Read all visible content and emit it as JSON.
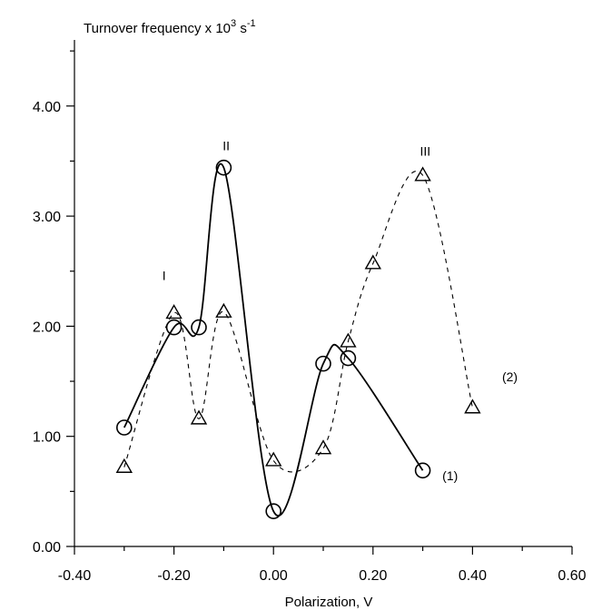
{
  "chart_data": {
    "type": "line",
    "title": "",
    "ylabel": {
      "main": "Turnover frequency x 10",
      "sup1": "3",
      "unit": " s",
      "sup2": "-1"
    },
    "xlabel": "Polarization, V",
    "xlim": [
      -0.4,
      0.6
    ],
    "ylim": [
      0.0,
      4.6
    ],
    "x_ticks": [
      -0.4,
      -0.2,
      0.0,
      0.2,
      0.4,
      0.6
    ],
    "x_tick_labels": [
      "-0.40",
      "-0.20",
      "0.00",
      "0.20",
      "0.40",
      "0.60"
    ],
    "y_ticks": [
      0.0,
      1.0,
      2.0,
      3.0,
      4.0
    ],
    "y_tick_labels": [
      "0.00",
      "1.00",
      "2.00",
      "3.00",
      "4.00"
    ],
    "grid": false,
    "series": [
      {
        "name": "(1)",
        "marker": "circle",
        "line_style": "solid",
        "x": [
          -0.3,
          -0.2,
          -0.15,
          -0.1,
          0.0,
          0.1,
          0.15,
          0.3
        ],
        "y": [
          1.08,
          1.99,
          1.99,
          3.44,
          0.32,
          1.66,
          1.71,
          0.69
        ]
      },
      {
        "name": "(2)",
        "marker": "triangle",
        "line_style": "dashed",
        "x": [
          -0.3,
          -0.2,
          -0.15,
          -0.1,
          0.0,
          0.1,
          0.15,
          0.2,
          0.3,
          0.4
        ],
        "y": [
          0.72,
          2.12,
          1.16,
          2.13,
          0.78,
          0.89,
          1.86,
          2.57,
          3.37,
          1.26
        ]
      }
    ],
    "annotations": [
      {
        "text": "I",
        "x": -0.22,
        "y": 2.42
      },
      {
        "text": "II",
        "x": -0.095,
        "y": 3.6
      },
      {
        "text": "III",
        "x": 0.305,
        "y": 3.55
      },
      {
        "text": "(1)",
        "x": 0.355,
        "y": 0.6
      },
      {
        "text": "(2)",
        "x": 0.475,
        "y": 1.5
      }
    ]
  }
}
